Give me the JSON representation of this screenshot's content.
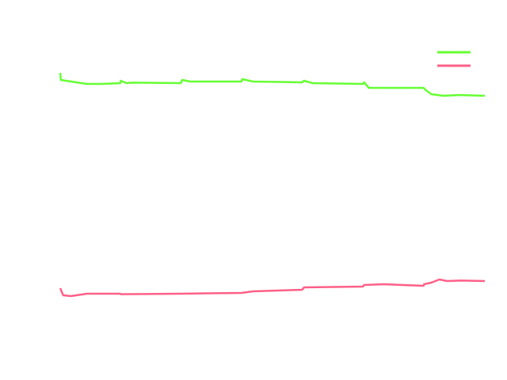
{
  "chart_data": {
    "type": "line",
    "title": "",
    "xlabel": "",
    "ylabel": "",
    "xlim": [
      0,
      7
    ],
    "ylim": [
      0,
      100
    ],
    "grid": false,
    "legend_position": "top-right",
    "series": [
      {
        "name": "",
        "color": "#66ff33",
        "x": [
          0,
          0.01,
          0.18,
          0.44,
          0.7,
          0.99,
          1.0,
          1.09,
          1.2,
          1.99,
          2.01,
          2.14,
          2.99,
          3.0,
          3.18,
          3.99,
          4.02,
          4.16,
          4.99,
          5.01,
          5.09,
          5.2,
          5.99,
          6.03,
          6.12,
          6.32,
          6.58,
          7.0
        ],
        "y": [
          87,
          84.75,
          84.25,
          83.5,
          83.5,
          83.75,
          84.5,
          83.75,
          83.9,
          83.75,
          84.75,
          84.25,
          84.25,
          85,
          84.25,
          84,
          84.5,
          83.75,
          83.5,
          84,
          82.25,
          82.25,
          82.25,
          81.5,
          80.25,
          79.75,
          80,
          79.75
        ]
      },
      {
        "name": "",
        "color": "#ff6088",
        "x": [
          0,
          0.05,
          0.18,
          0.44,
          0.99,
          1.0,
          1.99,
          2.99,
          3.18,
          3.99,
          4.02,
          4.99,
          5.01,
          5.33,
          5.99,
          6.0,
          6.12,
          6.25,
          6.38,
          6.6,
          7.0
        ],
        "y": [
          19,
          16.75,
          16.5,
          17.25,
          17.25,
          17.1,
          17.25,
          17.5,
          18,
          18.5,
          19.25,
          19.5,
          20,
          20.25,
          19.75,
          20.25,
          20.75,
          21.75,
          21.25,
          21.4,
          21.25
        ]
      }
    ]
  }
}
